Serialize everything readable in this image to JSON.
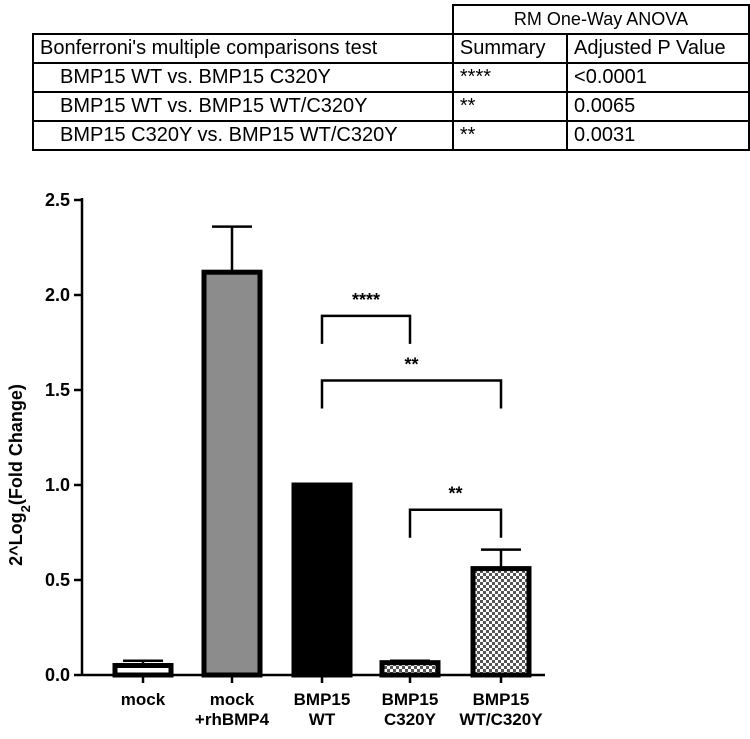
{
  "table": {
    "group_header": "RM One-Way ANOVA",
    "columns": [
      "Bonferroni's multiple comparisons test",
      "Summary",
      "Adjusted P Value"
    ],
    "rows": [
      {
        "comparison": "BMP15 WT vs. BMP15 C320Y",
        "summary": "****",
        "p": "<0.0001"
      },
      {
        "comparison": "BMP15 WT vs. BMP15 WT/C320Y",
        "summary": "**",
        "p": "0.0065"
      },
      {
        "comparison": "BMP15 C320Y vs. BMP15 WT/C320Y",
        "summary": "**",
        "p": "0.0031"
      }
    ]
  },
  "chart_data": {
    "type": "bar",
    "categories": [
      [
        "mock"
      ],
      [
        "mock",
        "+rhBMP4"
      ],
      [
        "BMP15",
        "WT"
      ],
      [
        "BMP15",
        "C320Y"
      ],
      [
        "BMP15",
        "WT/C320Y"
      ]
    ],
    "values": [
      0.05,
      2.12,
      1.0,
      0.065,
      0.56
    ],
    "errors": [
      0.025,
      0.24,
      0.0,
      0.01,
      0.1
    ],
    "fills": [
      "#ffffff",
      "#8c8c8c",
      "#000000",
      "pattern",
      "pattern"
    ],
    "ylabel": "2^Log2(Fold Change)",
    "ylim": [
      0,
      2.5
    ],
    "yticks": [
      "0.0",
      "0.5",
      "1.0",
      "1.5",
      "2.0",
      "2.5"
    ],
    "significance": [
      {
        "from": 2,
        "to": 3,
        "label": "****",
        "y": 1.89
      },
      {
        "from": 2,
        "to": 4,
        "label": "**",
        "y": 1.55
      },
      {
        "from": 3,
        "to": 4,
        "label": "**",
        "y": 0.87
      }
    ]
  }
}
